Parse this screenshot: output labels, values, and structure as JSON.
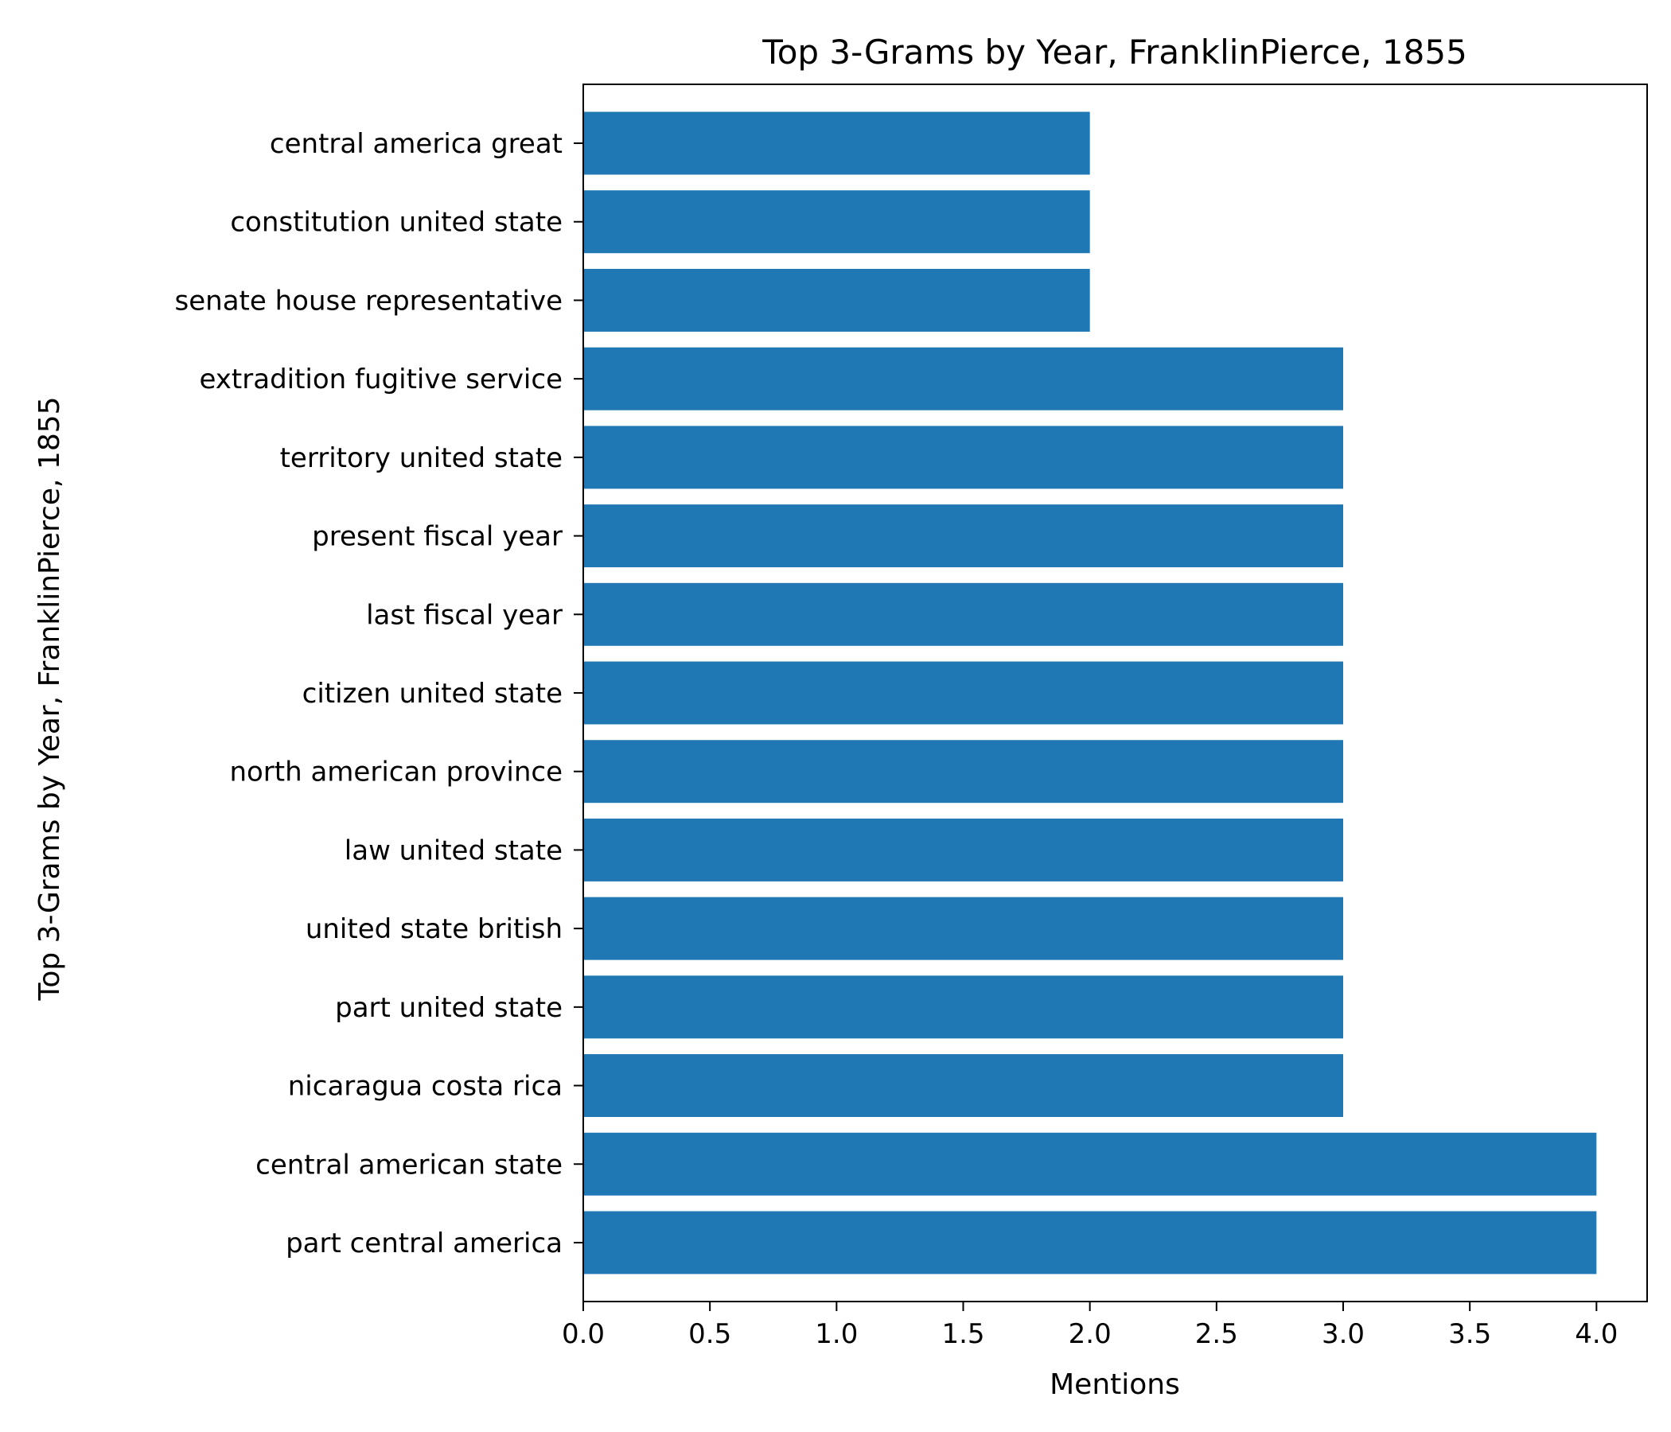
{
  "chart_data": {
    "type": "bar",
    "orientation": "horizontal",
    "title": "Top 3-Grams by Year, FranklinPierce, 1855",
    "xlabel": "Mentions",
    "ylabel": "Top 3-Grams by Year, FranklinPierce, 1855",
    "categories": [
      "part central america",
      "central american state",
      "nicaragua costa rica",
      "part united state",
      "united state british",
      "law united state",
      "north american province",
      "citizen united state",
      "last fiscal year",
      "present fiscal year",
      "territory united state",
      "extradition fugitive service",
      "senate house representative",
      "constitution united state",
      "central america great"
    ],
    "values": [
      4,
      4,
      3,
      3,
      3,
      3,
      3,
      3,
      3,
      3,
      3,
      3,
      2,
      2,
      2
    ],
    "xlim": [
      0,
      4.2
    ],
    "xticks": [
      "0.0",
      "0.5",
      "1.0",
      "1.5",
      "2.0",
      "2.5",
      "3.0",
      "3.5",
      "4.0"
    ],
    "grid": false,
    "colors": {
      "bar": "#1f77b4",
      "axis": "#000000"
    }
  }
}
